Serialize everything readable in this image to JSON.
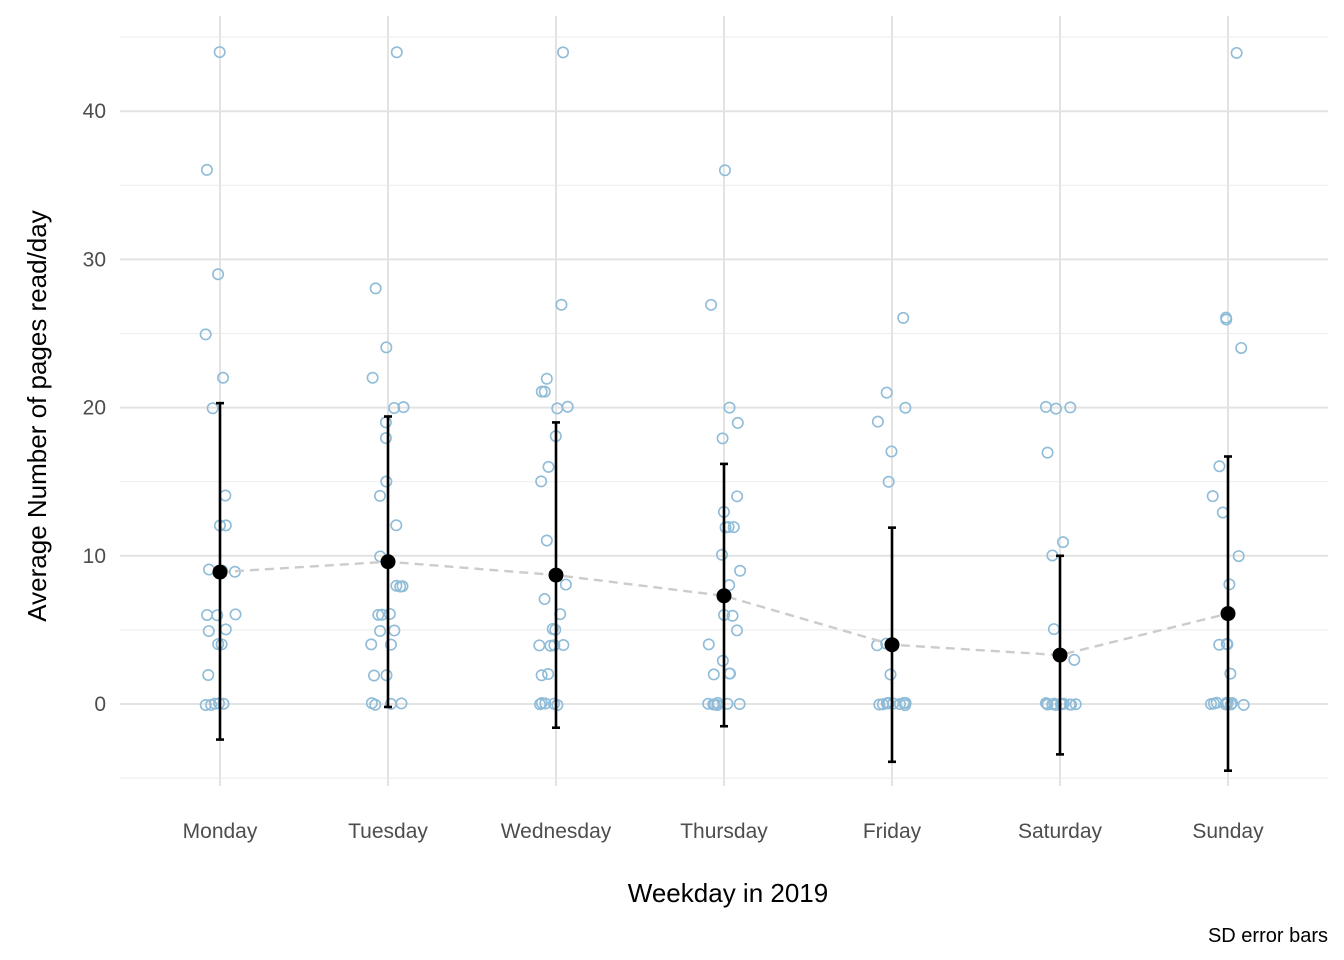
{
  "chart_data": {
    "type": "scatter",
    "xlabel": "Weekday in 2019",
    "ylabel": "Average Number of pages read/day",
    "caption": "SD error bars",
    "categories": [
      "Monday",
      "Tuesday",
      "Wednesday",
      "Thursday",
      "Friday",
      "Saturday",
      "Sunday"
    ],
    "ylim": [
      -5,
      45
    ],
    "yticks": [
      0,
      10,
      20,
      30,
      40
    ],
    "grid": true,
    "point_color": "#8fbcd8",
    "mean_color": "#000000",
    "line_color": "#cccccc",
    "observations": [
      [
        44,
        36,
        29,
        25,
        22,
        20,
        14,
        12,
        12,
        9,
        9,
        9,
        6,
        6,
        6,
        5,
        5,
        4,
        4,
        2,
        0,
        0,
        0,
        0,
        0
      ],
      [
        44,
        28,
        24,
        22,
        20,
        20,
        19,
        18,
        15,
        14,
        12,
        10,
        8,
        8,
        8,
        6,
        6,
        6,
        5,
        5,
        4,
        4,
        2,
        2,
        0,
        0,
        0,
        0
      ],
      [
        44,
        27,
        22,
        21,
        21,
        20,
        20,
        18,
        16,
        15,
        11,
        8,
        7,
        6,
        5,
        5,
        4,
        4,
        4,
        4,
        2,
        2,
        0,
        0,
        0,
        0,
        0
      ],
      [
        36,
        27,
        20,
        19,
        18,
        14,
        13,
        12,
        12,
        12,
        10,
        9,
        8,
        6,
        6,
        5,
        4,
        3,
        2,
        2,
        2,
        0,
        0,
        0,
        0,
        0,
        0,
        0
      ],
      [
        26,
        21,
        20,
        19,
        17,
        15,
        4,
        4,
        2,
        0,
        0,
        0,
        0,
        0,
        0,
        0,
        0,
        0,
        0
      ],
      [
        20,
        20,
        20,
        17,
        11,
        10,
        5,
        3,
        0,
        0,
        0,
        0,
        0,
        0,
        0,
        0,
        0,
        0,
        0,
        0
      ],
      [
        44,
        26,
        26,
        24,
        16,
        14,
        13,
        10,
        8,
        4,
        4,
        4,
        2,
        0,
        0,
        0,
        0,
        0,
        0,
        0,
        0,
        0
      ]
    ],
    "series": [
      {
        "values": [
          8.9,
          9.6,
          8.7,
          7.3,
          4.0,
          3.3,
          6.1
        ]
      }
    ],
    "sd_lower": [
      -2.4,
      -0.2,
      -1.6,
      -1.5,
      -3.9,
      -3.4,
      -4.5
    ],
    "sd_upper": [
      20.3,
      19.4,
      19.0,
      16.2,
      11.9,
      10.0,
      16.7
    ]
  }
}
